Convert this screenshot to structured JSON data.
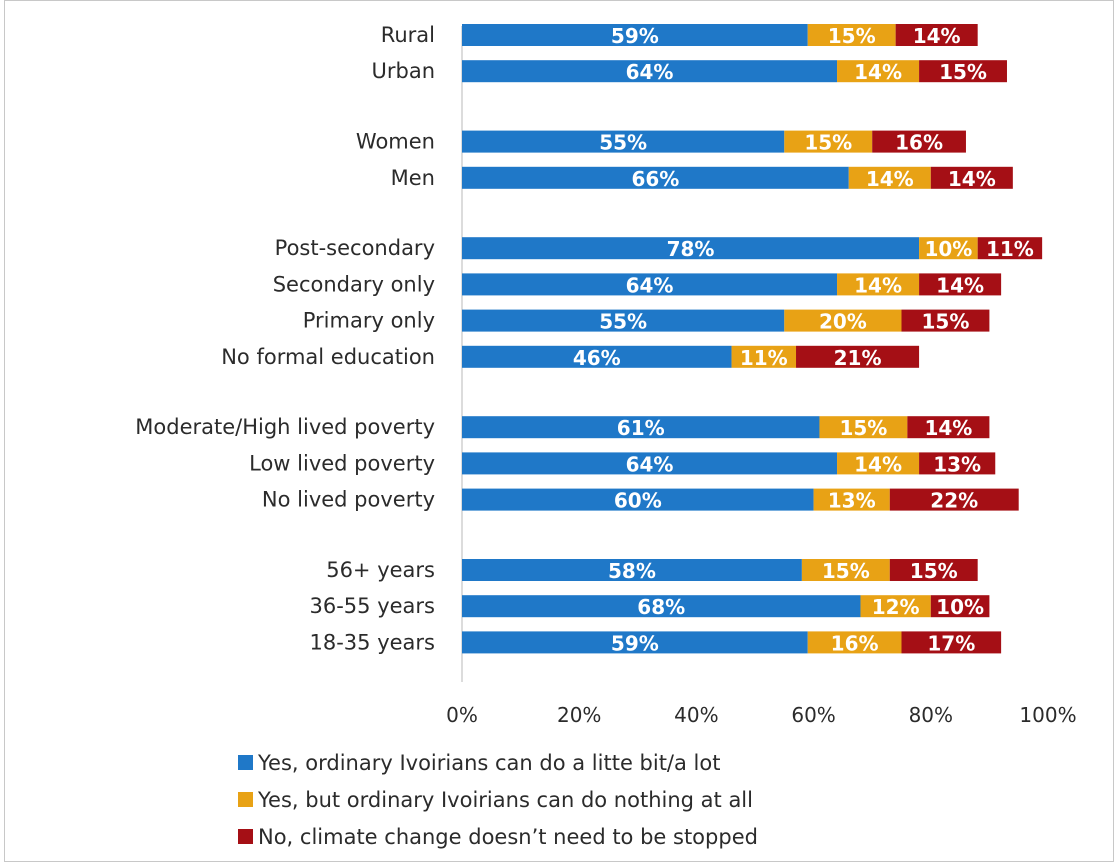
{
  "chart_data": {
    "type": "bar",
    "orientation": "horizontal",
    "stacked": true,
    "categories": [
      "Rural",
      "Urban",
      "Women",
      "Men",
      "Post-secondary",
      "Secondary only",
      "Primary only",
      "No formal education",
      "Moderate/High lived poverty",
      "Low lived poverty",
      "No lived poverty",
      "56+ years",
      "36-55 years",
      "18-35 years"
    ],
    "groups": [
      2,
      2,
      4,
      3,
      3
    ],
    "series": [
      {
        "name": "Yes, ordinary Ivoirians can do a litte bit/a lot",
        "color": "#1f78c8",
        "values": [
          59,
          64,
          55,
          66,
          78,
          64,
          55,
          46,
          61,
          64,
          60,
          58,
          68,
          59
        ],
        "labels": [
          "59%",
          "64%",
          "55%",
          "66%",
          "78%",
          "64%",
          "55%",
          "46%",
          "61%",
          "64%",
          "60%",
          "58%",
          "68%",
          "59%"
        ]
      },
      {
        "name": "Yes, but ordinary Ivoirians can do nothing at all",
        "color": "#e8a215",
        "values": [
          15,
          14,
          15,
          14,
          10,
          14,
          20,
          11,
          15,
          14,
          13,
          15,
          12,
          16
        ],
        "labels": [
          "15%",
          "14%",
          "15%",
          "14%",
          "10%",
          "14%",
          "20%",
          "11%",
          "15%",
          "14%",
          "13%",
          "15%",
          "12%",
          "16%"
        ]
      },
      {
        "name": "No, climate change doesn’t need to be stopped",
        "color": "#a50f15",
        "values": [
          14,
          15,
          16,
          14,
          11,
          14,
          15,
          21,
          14,
          13,
          22,
          15,
          10,
          17
        ],
        "labels": [
          "14%",
          "15%",
          "16%",
          "14%",
          "11%",
          "14%",
          "15%",
          "21%",
          "14%",
          "13%",
          "22%",
          "15%",
          "10%",
          "17%"
        ]
      }
    ],
    "xlim": [
      0,
      100
    ],
    "xticks": [
      "0%",
      "20%",
      "40%",
      "60%",
      "80%",
      "100%"
    ],
    "grid": false,
    "legend_position": "bottom-left"
  }
}
